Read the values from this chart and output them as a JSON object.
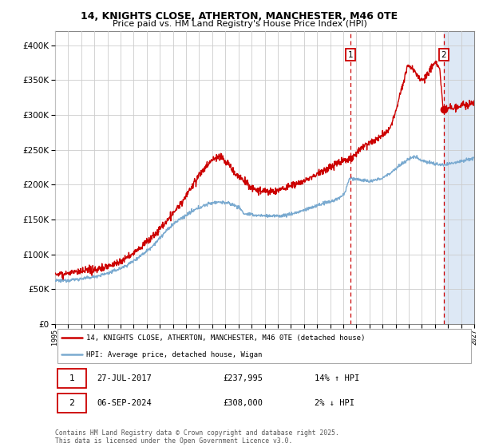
{
  "title1": "14, KNIGHTS CLOSE, ATHERTON, MANCHESTER, M46 0TE",
  "title2": "Price paid vs. HM Land Registry's House Price Index (HPI)",
  "hpi_color": "#7aaad0",
  "price_color": "#cc0000",
  "grid_color": "#cccccc",
  "shade_color": "#dde8f5",
  "marker1_x": 2017.57,
  "marker1_y": 237995,
  "marker2_x": 2024.68,
  "marker2_y": 308000,
  "legend_label1": "14, KNIGHTS CLOSE, ATHERTON, MANCHESTER, M46 0TE (detached house)",
  "legend_label2": "HPI: Average price, detached house, Wigan",
  "footer": "Contains HM Land Registry data © Crown copyright and database right 2025.\nThis data is licensed under the Open Government Licence v3.0.",
  "ylim": [
    0,
    420000
  ],
  "xlim": [
    1995,
    2027
  ],
  "shade_start": 2024.68,
  "shade_end": 2027,
  "yticks": [
    0,
    50000,
    100000,
    150000,
    200000,
    250000,
    300000,
    350000,
    400000
  ]
}
